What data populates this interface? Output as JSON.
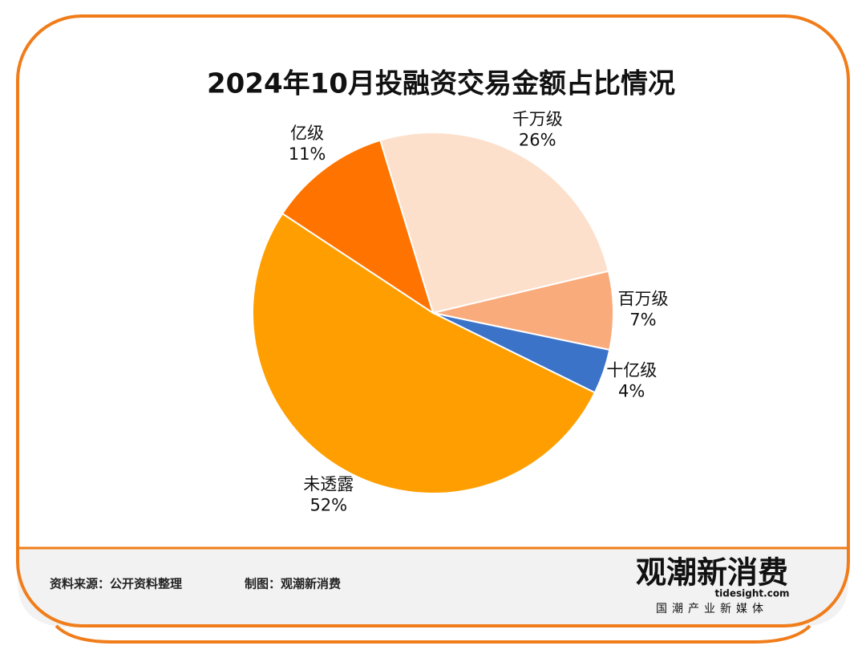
{
  "chart_data": {
    "type": "pie",
    "title": "2024年10月投融资交易金额占比情况",
    "categories": [
      "千万级",
      "百万级",
      "十亿级",
      "未透露",
      "亿级"
    ],
    "values": [
      26,
      7,
      4,
      52,
      11
    ],
    "value_labels": [
      "26%",
      "7%",
      "4%",
      "52%",
      "11%"
    ],
    "colors": [
      "#fde0cc",
      "#f9ab7c",
      "#3b73c8",
      "#ff9e00",
      "#ff7400"
    ]
  },
  "footer": {
    "source": "资料来源：公开资料整理",
    "maker": "制图：观潮新消费",
    "logo": "观潮新消费",
    "site": "tidesight.com",
    "slogan": "国潮产业新媒体"
  }
}
